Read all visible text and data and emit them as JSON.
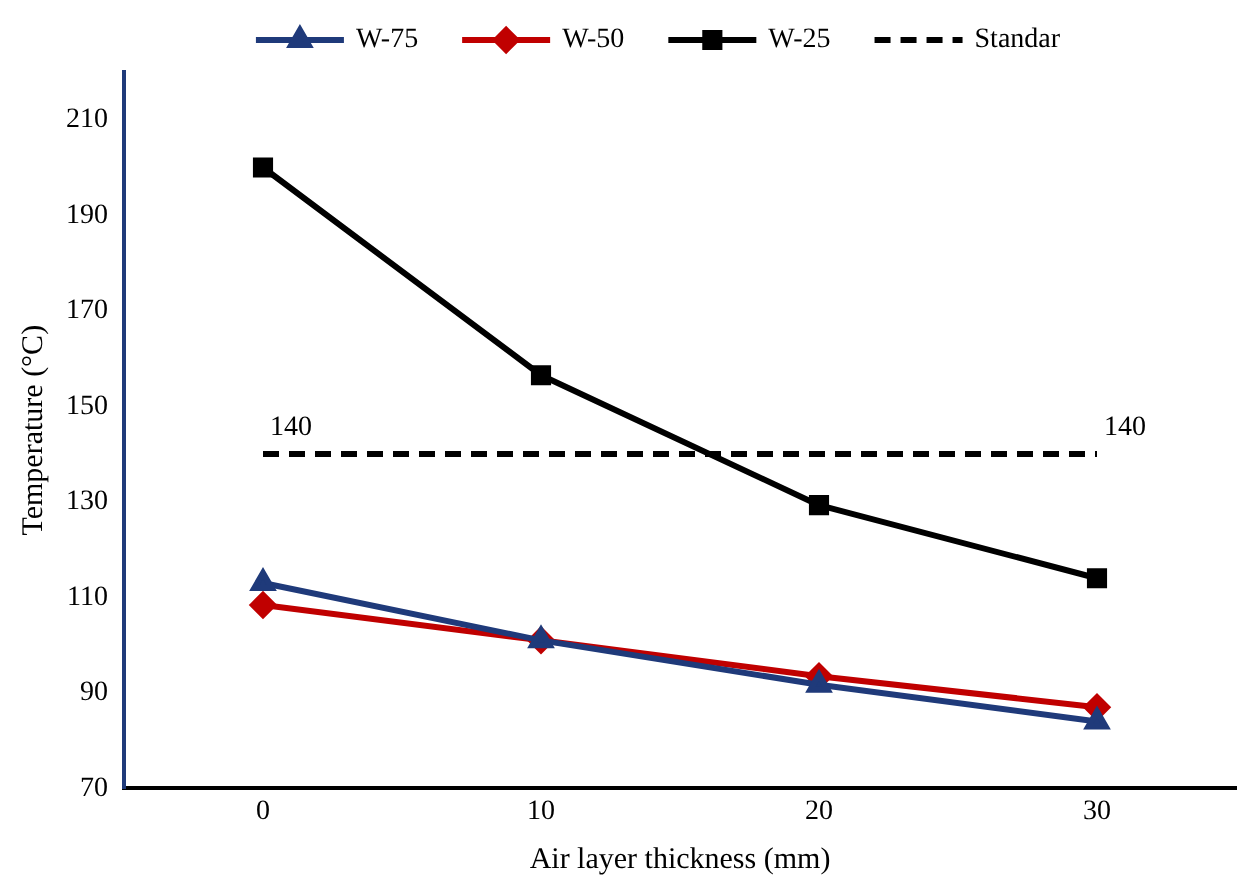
{
  "chart_data": {
    "type": "line",
    "xlabel": "Air layer thickness (mm)",
    "ylabel": "Temperature (°C)",
    "x": [
      0,
      10,
      20,
      30
    ],
    "series": [
      {
        "name": "W-75",
        "color": "#1f3a7a",
        "marker": "triangle",
        "values": [
          113,
          101,
          91.7,
          84
        ]
      },
      {
        "name": "W-50",
        "color": "#c00000",
        "marker": "diamond",
        "values": [
          108.4,
          101,
          93.5,
          87
        ]
      },
      {
        "name": "W-25",
        "color": "#000000",
        "marker": "square",
        "values": [
          200,
          156.5,
          129.3,
          114
        ]
      },
      {
        "name": "Standar",
        "color": "#000000",
        "marker": "none",
        "line_style": "dashed",
        "values": [
          140,
          140,
          140,
          140
        ]
      }
    ],
    "annotations": [
      {
        "text": "140",
        "x": 0,
        "y": 140
      },
      {
        "text": "140",
        "x": 30,
        "y": 140
      }
    ],
    "xlim": [
      -5,
      35
    ],
    "xticks": [
      0,
      10,
      20,
      30
    ],
    "ylim": [
      70,
      220
    ],
    "yticks": [
      70,
      90,
      110,
      130,
      150,
      170,
      190,
      210
    ],
    "grid": false,
    "legend": "top"
  }
}
